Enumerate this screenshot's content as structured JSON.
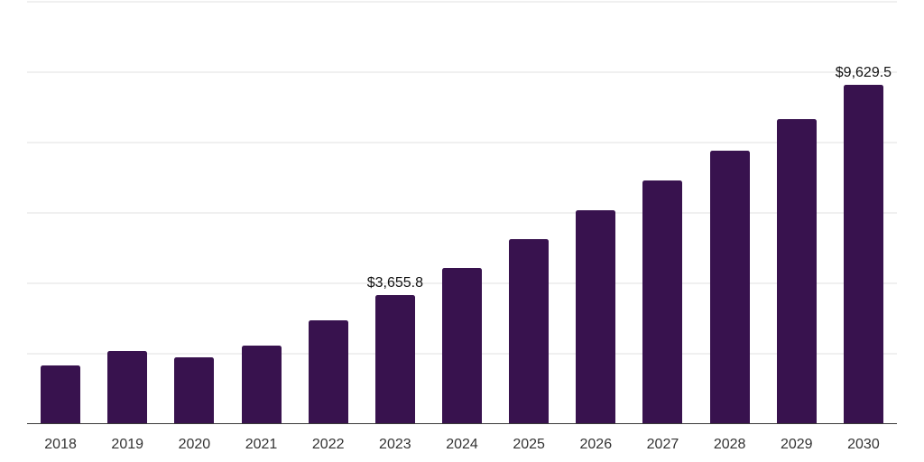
{
  "page": {
    "background_color": "#ffffff"
  },
  "chart_data": {
    "type": "bar",
    "title": "",
    "xlabel": "",
    "ylabel": "",
    "categories": [
      "2018",
      "2019",
      "2020",
      "2021",
      "2022",
      "2023",
      "2024",
      "2025",
      "2026",
      "2027",
      "2028",
      "2029",
      "2030"
    ],
    "values": [
      1665,
      2075,
      1895,
      2230,
      2950,
      3655.8,
      4435,
      5245,
      6075,
      6920,
      7780,
      8670,
      9629.5
    ],
    "data_labels": [
      "",
      "",
      "",
      "",
      "",
      "$3,655.8",
      "",
      "",
      "",
      "",
      "",
      "",
      "$9,629.5"
    ],
    "ylim": [
      0,
      12000
    ],
    "gridline_step": 2000,
    "grid": "horizontal-only",
    "legend_position": "none",
    "colors": {
      "bar": "#38124e",
      "gridline": "#f0f0f0",
      "axis": "#3a3a3a",
      "tick_label": "#333333",
      "data_label": "#111111"
    }
  }
}
